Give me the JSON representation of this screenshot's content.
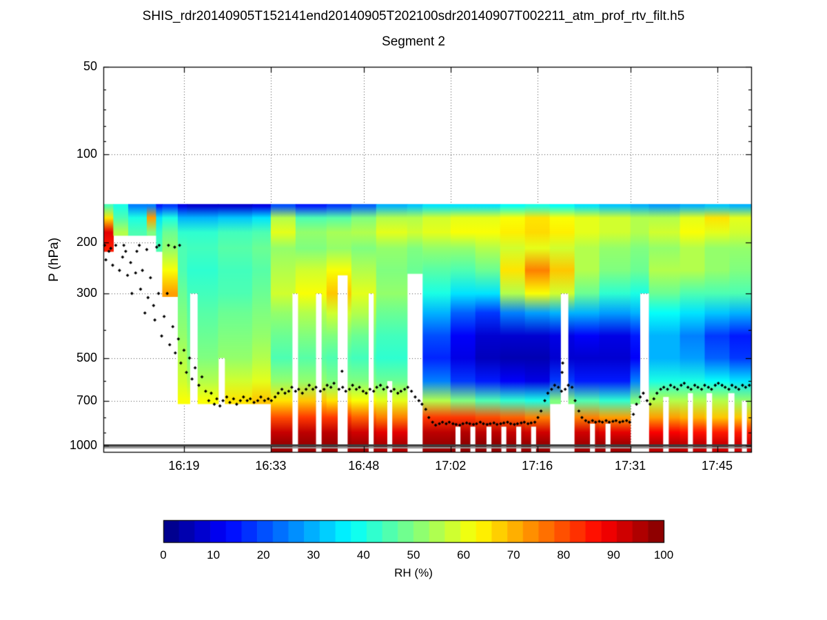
{
  "chart_data": {
    "type": "heatmap",
    "title": "SHIS_rdr20140905T152141end20140905T202100sdr20140907T002211_atm_prof_rtv_filt.h5",
    "subtitle": "Segment 2",
    "ylabel": "P (hPa)",
    "colorbar_label": "RH (%)",
    "colormap": "jet",
    "y_scale": "log",
    "p_range": [
      50,
      1050
    ],
    "p_ticks": [
      50,
      100,
      200,
      300,
      500,
      700,
      1000
    ],
    "p_minor_ticks": [
      60,
      70,
      80,
      90,
      400,
      600,
      800,
      900
    ],
    "time_start_min": 0,
    "time_end_min": 104.5,
    "x_ticks": [
      {
        "t": 13,
        "label": "16:19"
      },
      {
        "t": 27,
        "label": "16:33"
      },
      {
        "t": 42,
        "label": "16:48"
      },
      {
        "t": 56,
        "label": "17:02"
      },
      {
        "t": 70,
        "label": "17:16"
      },
      {
        "t": 85,
        "label": "17:31"
      },
      {
        "t": 99,
        "label": "17:45"
      }
    ],
    "colorbar_range": [
      0,
      100
    ],
    "colorbar_ticks": [
      0,
      10,
      20,
      30,
      40,
      50,
      60,
      70,
      80,
      90,
      100
    ],
    "colorbar_segments": 32,
    "field_top_p": 148,
    "surface_band_p": 1000,
    "p_levels": [
      150,
      165,
      185,
      210,
      250,
      300,
      350,
      420,
      500,
      600,
      700,
      800,
      900,
      975
    ],
    "columns": [
      {
        "t0": 0,
        "t1": 1.6,
        "rh": [
          45,
          65,
          90,
          85,
          null,
          null,
          null,
          null,
          null,
          null,
          null,
          null,
          null,
          null
        ]
      },
      {
        "t0": 1.6,
        "t1": 4,
        "rh": [
          40,
          45,
          55,
          null,
          null,
          null,
          null,
          null,
          null,
          null,
          null,
          null,
          null,
          null
        ]
      },
      {
        "t0": 4,
        "t1": 7,
        "rh": [
          25,
          40,
          45,
          null,
          null,
          null,
          null,
          null,
          null,
          null,
          null,
          null,
          null,
          null
        ]
      },
      {
        "t0": 7,
        "t1": 8.5,
        "rh": [
          25,
          72,
          50,
          null,
          null,
          null,
          null,
          null,
          null,
          null,
          null,
          null,
          null,
          null
        ]
      },
      {
        "t0": 8.5,
        "t1": 9.5,
        "rh": [
          15,
          35,
          42,
          45,
          null,
          null,
          null,
          null,
          null,
          null,
          null,
          null,
          null,
          null
        ]
      },
      {
        "t0": 9.5,
        "t1": 12,
        "rh": [
          18,
          40,
          48,
          52,
          62,
          72,
          null,
          null,
          null,
          null,
          null,
          null,
          null,
          null
        ]
      },
      {
        "t0": 12,
        "t1": 13.5,
        "rh": [
          10,
          30,
          42,
          45,
          45,
          48,
          50,
          52,
          55,
          58,
          62,
          null,
          null,
          null
        ]
      },
      {
        "t0": 13.5,
        "t1": 18.5,
        "rh": [
          8,
          30,
          42,
          44,
          42,
          44,
          46,
          48,
          50,
          55,
          62,
          null,
          null,
          null
        ]
      },
      {
        "t0": 18.5,
        "t1": 24,
        "rh": [
          8,
          32,
          44,
          46,
          44,
          45,
          48,
          50,
          52,
          58,
          65,
          null,
          null,
          null
        ]
      },
      {
        "t0": 24,
        "t1": 27,
        "rh": [
          10,
          35,
          45,
          48,
          46,
          48,
          50,
          52,
          55,
          60,
          68,
          null,
          null,
          null
        ]
      },
      {
        "t0": 27,
        "t1": 31,
        "rh": [
          20,
          55,
          60,
          52,
          55,
          58,
          52,
          48,
          45,
          52,
          65,
          80,
          93,
          97
        ]
      },
      {
        "t0": 31,
        "t1": 36,
        "rh": [
          15,
          45,
          52,
          50,
          58,
          62,
          55,
          50,
          46,
          52,
          68,
          82,
          94,
          97
        ]
      },
      {
        "t0": 36,
        "t1": 40,
        "rh": [
          18,
          46,
          54,
          52,
          62,
          68,
          58,
          50,
          45,
          50,
          65,
          82,
          94,
          97
        ]
      },
      {
        "t0": 40,
        "t1": 44,
        "rh": [
          22,
          50,
          55,
          50,
          55,
          60,
          55,
          48,
          44,
          50,
          62,
          78,
          92,
          96
        ]
      },
      {
        "t0": 44,
        "t1": 49,
        "rh": [
          30,
          55,
          60,
          52,
          50,
          52,
          48,
          44,
          42,
          48,
          60,
          75,
          90,
          95
        ]
      },
      {
        "t0": 49,
        "t1": 51.5,
        "rh": [
          32,
          55,
          58,
          50,
          48,
          null,
          null,
          null,
          null,
          null,
          null,
          null,
          null,
          null
        ]
      },
      {
        "t0": 51.5,
        "t1": 56,
        "rh": [
          35,
          58,
          60,
          52,
          46,
          40,
          30,
          20,
          16,
          25,
          55,
          82,
          94,
          97
        ]
      },
      {
        "t0": 56,
        "t1": 60,
        "rh": [
          35,
          60,
          62,
          52,
          45,
          35,
          22,
          12,
          10,
          18,
          50,
          82,
          95,
          98
        ]
      },
      {
        "t0": 60,
        "t1": 64,
        "rh": [
          35,
          60,
          62,
          55,
          48,
          35,
          18,
          8,
          6,
          15,
          45,
          80,
          94,
          98
        ]
      },
      {
        "t0": 64,
        "t1": 68,
        "rh": [
          38,
          62,
          64,
          58,
          65,
          55,
          25,
          8,
          5,
          12,
          42,
          78,
          93,
          97
        ]
      },
      {
        "t0": 68,
        "t1": 72,
        "rh": [
          40,
          65,
          66,
          60,
          75,
          62,
          28,
          8,
          5,
          10,
          40,
          75,
          92,
          97
        ]
      },
      {
        "t0": 72,
        "t1": 76,
        "rh": [
          38,
          62,
          64,
          58,
          68,
          58,
          30,
          10,
          8,
          18,
          50,
          null,
          null,
          null
        ]
      },
      {
        "t0": 76,
        "t1": 80,
        "rh": [
          35,
          60,
          60,
          55,
          55,
          48,
          30,
          12,
          8,
          15,
          45,
          75,
          92,
          96
        ]
      },
      {
        "t0": 80,
        "t1": 85,
        "rh": [
          32,
          58,
          58,
          52,
          50,
          42,
          28,
          10,
          8,
          15,
          42,
          72,
          90,
          96
        ]
      },
      {
        "t0": 85,
        "t1": 88,
        "rh": [
          30,
          55,
          55,
          50,
          48,
          40,
          30,
          15,
          12,
          25,
          50,
          null,
          null,
          null
        ]
      },
      {
        "t0": 88,
        "t1": 93,
        "rh": [
          28,
          55,
          58,
          52,
          55,
          48,
          38,
          30,
          30,
          40,
          55,
          72,
          88,
          94
        ]
      },
      {
        "t0": 93,
        "t1": 97,
        "rh": [
          30,
          60,
          62,
          55,
          55,
          45,
          35,
          25,
          28,
          40,
          55,
          70,
          86,
          93
        ]
      },
      {
        "t0": 97,
        "t1": 101,
        "rh": [
          32,
          65,
          60,
          52,
          52,
          45,
          32,
          18,
          22,
          38,
          55,
          68,
          85,
          92
        ]
      },
      {
        "t0": 101,
        "t1": 104.5,
        "rh": [
          30,
          60,
          58,
          52,
          50,
          45,
          30,
          15,
          18,
          35,
          52,
          68,
          85,
          92
        ]
      }
    ],
    "gaps": [
      [
        14.0,
        15.2,
        300
      ],
      [
        18.6,
        19.6,
        500
      ],
      [
        30.5,
        31.4,
        300
      ],
      [
        34.3,
        35.2,
        300
      ],
      [
        37.8,
        39.4,
        260
      ],
      [
        42.8,
        43.6,
        300
      ],
      [
        45.8,
        46.6,
        600
      ],
      [
        56.8,
        57.6,
        860
      ],
      [
        59.2,
        60.0,
        860
      ],
      [
        61.8,
        62.6,
        860
      ],
      [
        64.2,
        65.0,
        860
      ],
      [
        66.6,
        67.4,
        860
      ],
      [
        69.0,
        69.8,
        860
      ],
      [
        73.8,
        75.0,
        300
      ],
      [
        78.5,
        79.3,
        840
      ],
      [
        81.0,
        81.8,
        840
      ],
      [
        86.6,
        88.0,
        300
      ],
      [
        90.3,
        91.2,
        680
      ],
      [
        94.3,
        95.1,
        660
      ],
      [
        97.3,
        98.2,
        660
      ],
      [
        100.8,
        101.8,
        660
      ],
      [
        103.0,
        103.8,
        700
      ]
    ],
    "markers": [
      [
        0.2,
        205
      ],
      [
        0.4,
        230
      ],
      [
        0.9,
        215
      ],
      [
        1.2,
        210
      ],
      [
        1.5,
        240
      ],
      [
        2.0,
        205
      ],
      [
        2.6,
        250
      ],
      [
        3.1,
        225
      ],
      [
        3.3,
        205
      ],
      [
        3.6,
        215
      ],
      [
        3.9,
        260
      ],
      [
        4.4,
        235
      ],
      [
        4.6,
        300
      ],
      [
        5.2,
        255
      ],
      [
        5.4,
        215
      ],
      [
        5.8,
        205
      ],
      [
        6.0,
        290
      ],
      [
        6.3,
        250
      ],
      [
        6.7,
        350
      ],
      [
        7.0,
        212
      ],
      [
        7.2,
        310
      ],
      [
        7.6,
        265
      ],
      [
        8.1,
        330
      ],
      [
        8.3,
        370
      ],
      [
        8.6,
        208
      ],
      [
        8.9,
        300
      ],
      [
        9.0,
        205
      ],
      [
        9.4,
        420
      ],
      [
        9.8,
        360
      ],
      [
        10.3,
        300
      ],
      [
        10.5,
        205
      ],
      [
        10.7,
        450
      ],
      [
        11.2,
        390
      ],
      [
        11.5,
        208
      ],
      [
        11.6,
        480
      ],
      [
        12.1,
        430
      ],
      [
        12.3,
        205
      ],
      [
        12.5,
        520
      ],
      [
        13.0,
        470
      ],
      [
        13.4,
        560
      ],
      [
        13.9,
        500
      ],
      [
        14.3,
        590
      ],
      [
        14.8,
        540
      ],
      [
        15.4,
        620
      ],
      [
        15.9,
        580
      ],
      [
        16.5,
        650
      ],
      [
        17.0,
        700
      ],
      [
        17.4,
        660
      ],
      [
        17.9,
        720
      ],
      [
        18.3,
        690
      ],
      [
        18.8,
        730
      ],
      [
        19.3,
        700
      ],
      [
        19.9,
        680
      ],
      [
        20.4,
        710
      ],
      [
        21.0,
        690
      ],
      [
        21.5,
        720
      ],
      [
        22.1,
        700
      ],
      [
        22.6,
        680
      ],
      [
        23.2,
        700
      ],
      [
        23.7,
        690
      ],
      [
        24.3,
        710
      ],
      [
        24.9,
        700
      ],
      [
        25.4,
        680
      ],
      [
        26.0,
        700
      ],
      [
        26.6,
        690
      ],
      [
        27.1,
        700
      ],
      [
        27.7,
        680
      ],
      [
        28.2,
        660
      ],
      [
        28.8,
        640
      ],
      [
        29.3,
        660
      ],
      [
        29.9,
        650
      ],
      [
        30.4,
        630
      ],
      [
        31.0,
        650
      ],
      [
        31.5,
        640
      ],
      [
        32.1,
        660
      ],
      [
        32.7,
        640
      ],
      [
        33.2,
        620
      ],
      [
        33.8,
        640
      ],
      [
        34.3,
        630
      ],
      [
        35.0,
        650
      ],
      [
        35.6,
        640
      ],
      [
        36.1,
        620
      ],
      [
        36.7,
        630
      ],
      [
        37.2,
        610
      ],
      [
        38.0,
        640
      ],
      [
        38.5,
        555
      ],
      [
        38.6,
        630
      ],
      [
        39.1,
        650
      ],
      [
        39.7,
        640
      ],
      [
        40.2,
        620
      ],
      [
        40.8,
        640
      ],
      [
        41.3,
        630
      ],
      [
        41.9,
        650
      ],
      [
        42.4,
        660
      ],
      [
        43.0,
        640
      ],
      [
        43.6,
        650
      ],
      [
        44.1,
        630
      ],
      [
        44.7,
        620
      ],
      [
        45.2,
        640
      ],
      [
        45.8,
        630
      ],
      [
        46.4,
        650
      ],
      [
        46.9,
        640
      ],
      [
        47.5,
        660
      ],
      [
        48.0,
        650
      ],
      [
        48.6,
        640
      ],
      [
        49.1,
        630
      ],
      [
        49.7,
        650
      ],
      [
        50.3,
        680
      ],
      [
        50.9,
        700
      ],
      [
        51.4,
        720
      ],
      [
        52.0,
        750
      ],
      [
        52.5,
        800
      ],
      [
        53.1,
        830
      ],
      [
        53.6,
        850
      ],
      [
        54.2,
        840
      ],
      [
        54.7,
        830
      ],
      [
        55.3,
        840
      ],
      [
        55.8,
        830
      ],
      [
        56.4,
        840
      ],
      [
        56.9,
        845
      ],
      [
        57.5,
        850
      ],
      [
        58.0,
        840
      ],
      [
        58.6,
        835
      ],
      [
        59.1,
        840
      ],
      [
        59.7,
        845
      ],
      [
        60.2,
        840
      ],
      [
        60.8,
        830
      ],
      [
        61.3,
        840
      ],
      [
        61.9,
        845
      ],
      [
        62.4,
        840
      ],
      [
        63.0,
        835
      ],
      [
        63.5,
        845
      ],
      [
        64.1,
        840
      ],
      [
        64.6,
        835
      ],
      [
        65.2,
        830
      ],
      [
        65.7,
        840
      ],
      [
        66.3,
        845
      ],
      [
        66.8,
        840
      ],
      [
        67.4,
        835
      ],
      [
        67.9,
        830
      ],
      [
        68.5,
        840
      ],
      [
        69.0,
        835
      ],
      [
        69.6,
        830
      ],
      [
        70.1,
        800
      ],
      [
        70.6,
        760
      ],
      [
        71.2,
        700
      ],
      [
        71.7,
        660
      ],
      [
        72.3,
        640
      ],
      [
        72.8,
        620
      ],
      [
        73.4,
        630
      ],
      [
        73.9,
        650
      ],
      [
        74.0,
        560
      ],
      [
        74.1,
        520
      ],
      [
        74.5,
        640
      ],
      [
        75.0,
        620
      ],
      [
        75.6,
        630
      ],
      [
        76.1,
        700
      ],
      [
        76.7,
        760
      ],
      [
        77.2,
        800
      ],
      [
        77.8,
        820
      ],
      [
        78.3,
        830
      ],
      [
        78.9,
        820
      ],
      [
        79.4,
        830
      ],
      [
        80.0,
        825
      ],
      [
        80.5,
        830
      ],
      [
        81.1,
        820
      ],
      [
        81.6,
        830
      ],
      [
        82.2,
        825
      ],
      [
        82.7,
        820
      ],
      [
        83.3,
        830
      ],
      [
        83.8,
        825
      ],
      [
        84.4,
        820
      ],
      [
        84.9,
        830
      ],
      [
        85.5,
        780
      ],
      [
        86.0,
        720
      ],
      [
        86.6,
        680
      ],
      [
        87.1,
        660
      ],
      [
        87.7,
        700
      ],
      [
        88.2,
        720
      ],
      [
        88.8,
        690
      ],
      [
        89.3,
        660
      ],
      [
        89.9,
        640
      ],
      [
        90.4,
        630
      ],
      [
        91.0,
        640
      ],
      [
        91.5,
        620
      ],
      [
        92.1,
        630
      ],
      [
        92.6,
        640
      ],
      [
        93.2,
        620
      ],
      [
        93.7,
        610
      ],
      [
        94.3,
        630
      ],
      [
        94.8,
        640
      ],
      [
        95.4,
        620
      ],
      [
        95.9,
        630
      ],
      [
        96.5,
        640
      ],
      [
        97.0,
        620
      ],
      [
        97.6,
        630
      ],
      [
        98.1,
        640
      ],
      [
        98.7,
        620
      ],
      [
        99.2,
        610
      ],
      [
        99.8,
        620
      ],
      [
        100.3,
        630
      ],
      [
        100.9,
        640
      ],
      [
        101.4,
        620
      ],
      [
        102.0,
        630
      ],
      [
        102.5,
        640
      ],
      [
        103.1,
        620
      ],
      [
        103.6,
        630
      ],
      [
        104.2,
        620
      ]
    ]
  }
}
